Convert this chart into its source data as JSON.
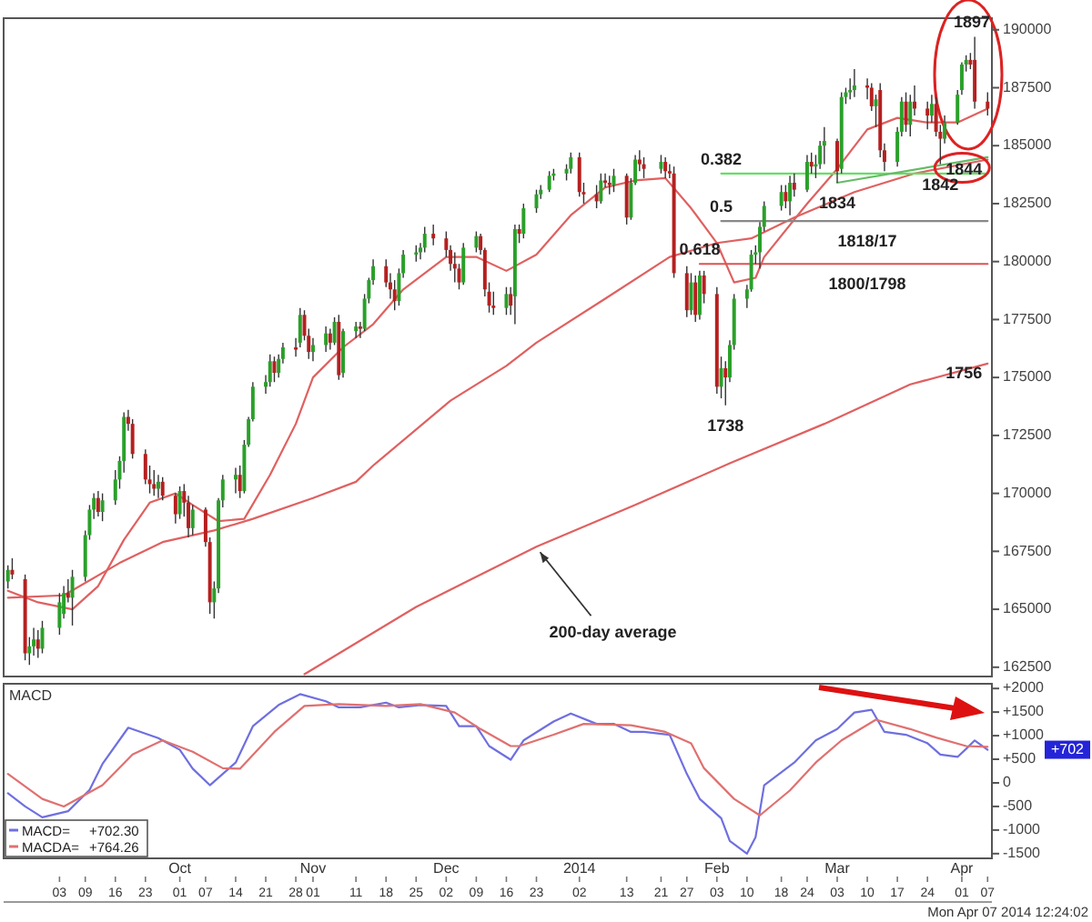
{
  "chart_data": [
    {
      "type": "candlestick",
      "tick_labels": "y",
      "xlim": [
        "2013-08-21",
        "2014-04-08"
      ],
      "x": [
        "2013-08-22",
        "2013-08-23",
        "2013-08-26",
        "2013-08-27",
        "2013-08-28",
        "2013-08-29",
        "2013-08-30",
        "2013-09-03",
        "2013-09-04",
        "2013-09-05",
        "2013-09-06",
        "2013-09-09",
        "2013-09-10",
        "2013-09-11",
        "2013-09-12",
        "2013-09-13",
        "2013-09-16",
        "2013-09-17",
        "2013-09-18",
        "2013-09-19",
        "2013-09-20",
        "2013-09-23",
        "2013-09-24",
        "2013-09-25",
        "2013-09-26",
        "2013-09-27",
        "2013-09-30",
        "2013-10-01",
        "2013-10-02",
        "2013-10-03",
        "2013-10-04",
        "2013-10-07",
        "2013-10-08",
        "2013-10-09",
        "2013-10-10",
        "2013-10-11",
        "2013-10-14",
        "2013-10-15",
        "2013-10-16",
        "2013-10-17",
        "2013-10-18",
        "2013-10-21",
        "2013-10-22",
        "2013-10-23",
        "2013-10-24",
        "2013-10-25",
        "2013-10-28",
        "2013-10-29",
        "2013-10-30",
        "2013-10-31",
        "2013-11-01",
        "2013-11-04",
        "2013-11-05",
        "2013-11-06",
        "2013-11-07",
        "2013-11-08",
        "2013-11-11",
        "2013-11-12",
        "2013-11-13",
        "2013-11-14",
        "2013-11-15",
        "2013-11-18",
        "2013-11-19",
        "2013-11-20",
        "2013-11-21",
        "2013-11-22",
        "2013-11-25",
        "2013-11-26",
        "2013-11-27",
        "2013-11-29",
        "2013-12-02",
        "2013-12-03",
        "2013-12-04",
        "2013-12-05",
        "2013-12-06",
        "2013-12-09",
        "2013-12-10",
        "2013-12-11",
        "2013-12-12",
        "2013-12-13",
        "2013-12-16",
        "2013-12-17",
        "2013-12-18",
        "2013-12-19",
        "2013-12-20",
        "2013-12-23",
        "2013-12-24",
        "2013-12-26",
        "2013-12-27",
        "2013-12-30",
        "2013-12-31",
        "2014-01-02",
        "2014-01-03",
        "2014-01-06",
        "2014-01-07",
        "2014-01-08",
        "2014-01-09",
        "2014-01-10",
        "2014-01-13",
        "2014-01-14",
        "2014-01-15",
        "2014-01-16",
        "2014-01-17",
        "2014-01-21",
        "2014-01-22",
        "2014-01-23",
        "2014-01-24",
        "2014-01-27",
        "2014-01-28",
        "2014-01-29",
        "2014-01-30",
        "2014-01-31",
        "2014-02-03",
        "2014-02-04",
        "2014-02-05",
        "2014-02-06",
        "2014-02-07",
        "2014-02-10",
        "2014-02-11",
        "2014-02-12",
        "2014-02-13",
        "2014-02-14",
        "2014-02-18",
        "2014-02-19",
        "2014-02-20",
        "2014-02-21",
        "2014-02-24",
        "2014-02-25",
        "2014-02-26",
        "2014-02-27",
        "2014-02-28",
        "2014-03-03",
        "2014-03-04",
        "2014-03-05",
        "2014-03-06",
        "2014-03-07",
        "2014-03-10",
        "2014-03-11",
        "2014-03-12",
        "2014-03-13",
        "2014-03-14",
        "2014-03-17",
        "2014-03-18",
        "2014-03-19",
        "2014-03-20",
        "2014-03-21",
        "2014-03-24",
        "2014-03-25",
        "2014-03-26",
        "2014-03-27",
        "2014-03-28",
        "2014-03-31",
        "2014-04-01",
        "2014-04-02",
        "2014-04-03",
        "2014-04-04",
        "2014-04-07"
      ],
      "ohlc": [
        [
          166200,
          166900,
          165900,
          166700
        ],
        [
          166700,
          167200,
          166300,
          166500
        ],
        [
          166300,
          166500,
          162800,
          163100
        ],
        [
          163100,
          163800,
          162600,
          163400
        ],
        [
          163400,
          164200,
          163000,
          163700
        ],
        [
          163700,
          164100,
          162900,
          163300
        ],
        [
          163300,
          164500,
          163100,
          164200
        ],
        [
          164200,
          165700,
          163900,
          165300
        ],
        [
          164800,
          166000,
          164600,
          165700
        ],
        [
          165700,
          166300,
          165300,
          165500
        ],
        [
          165500,
          166700,
          164300,
          166400
        ],
        [
          166400,
          168400,
          166200,
          168200
        ],
        [
          168200,
          169500,
          168000,
          169300
        ],
        [
          169300,
          170000,
          168900,
          169800
        ],
        [
          169800,
          170100,
          169000,
          169200
        ],
        [
          169200,
          170000,
          168800,
          169700
        ],
        [
          169700,
          171000,
          169500,
          170600
        ],
        [
          170600,
          171600,
          170200,
          171400
        ],
        [
          171400,
          173500,
          170900,
          173300
        ],
        [
          173300,
          173600,
          172700,
          173000
        ],
        [
          173000,
          173200,
          171500,
          171700
        ],
        [
          171700,
          171900,
          170400,
          170600
        ],
        [
          170600,
          171200,
          170000,
          170400
        ],
        [
          170400,
          171000,
          169900,
          170200
        ],
        [
          170200,
          170800,
          169800,
          170500
        ],
        [
          170500,
          170700,
          169700,
          169900
        ],
        [
          169900,
          170000,
          168700,
          169100
        ],
        [
          169100,
          170300,
          168900,
          170100
        ],
        [
          170100,
          170400,
          169000,
          169600
        ],
        [
          169600,
          169900,
          168100,
          168500
        ],
        [
          168500,
          169500,
          168200,
          169300
        ],
        [
          169300,
          169400,
          167700,
          167900
        ],
        [
          167900,
          168100,
          164800,
          165300
        ],
        [
          165300,
          166200,
          164600,
          165900
        ],
        [
          165900,
          169800,
          165700,
          169700
        ],
        [
          169700,
          170800,
          169400,
          170600
        ],
        [
          170600,
          171100,
          170000,
          170800
        ],
        [
          170800,
          171200,
          169800,
          170100
        ],
        [
          170100,
          172300,
          170000,
          172100
        ],
        [
          172100,
          173300,
          172000,
          173200
        ],
        [
          173200,
          174800,
          173100,
          174600
        ],
        [
          174600,
          175100,
          174300,
          174800
        ],
        [
          174800,
          176000,
          174600,
          175700
        ],
        [
          175700,
          175900,
          174800,
          175200
        ],
        [
          175200,
          176000,
          175000,
          175800
        ],
        [
          175800,
          176500,
          175600,
          176300
        ],
        [
          176300,
          176700,
          175900,
          176200
        ],
        [
          176500,
          178000,
          176300,
          177700
        ],
        [
          177700,
          177900,
          176600,
          176800
        ],
        [
          176800,
          177100,
          175800,
          176100
        ],
        [
          176100,
          176700,
          175700,
          176400
        ],
        [
          176400,
          177200,
          176100,
          176900
        ],
        [
          176900,
          177100,
          176200,
          176500
        ],
        [
          176500,
          177600,
          176400,
          177400
        ],
        [
          177400,
          177700,
          174900,
          175100
        ],
        [
          175200,
          177100,
          175000,
          177000
        ],
        [
          177000,
          177400,
          176700,
          177200
        ],
        [
          177200,
          177400,
          176700,
          177100
        ],
        [
          177100,
          178600,
          177000,
          178400
        ],
        [
          178400,
          179300,
          178200,
          179200
        ],
        [
          179200,
          180100,
          179000,
          179800
        ],
        [
          179800,
          180100,
          178900,
          179100
        ],
        [
          179100,
          179500,
          178400,
          178800
        ],
        [
          178800,
          179200,
          177900,
          178300
        ],
        [
          178300,
          179700,
          178100,
          179500
        ],
        [
          179500,
          180500,
          179300,
          180300
        ],
        [
          180300,
          180700,
          180000,
          180400
        ],
        [
          180400,
          180800,
          180100,
          180600
        ],
        [
          180600,
          181500,
          180400,
          181200
        ],
        [
          181200,
          181600,
          180700,
          181000
        ],
        [
          181000,
          181300,
          180200,
          180500
        ],
        [
          180500,
          180700,
          179600,
          179900
        ],
        [
          179900,
          180400,
          179100,
          179700
        ],
        [
          179700,
          179900,
          178800,
          179100
        ],
        [
          179100,
          180800,
          179000,
          180600
        ],
        [
          180600,
          181300,
          180400,
          181100
        ],
        [
          181100,
          181200,
          180300,
          180500
        ],
        [
          180500,
          180600,
          178500,
          178800
        ],
        [
          178700,
          179100,
          177800,
          178100
        ],
        [
          178100,
          178700,
          177700,
          178000
        ],
        [
          178000,
          178900,
          177700,
          178600
        ],
        [
          178600,
          178900,
          177700,
          178100
        ],
        [
          178500,
          181600,
          177300,
          181400
        ],
        [
          181400,
          181600,
          180800,
          181200
        ],
        [
          181200,
          182500,
          181000,
          182300
        ],
        [
          182300,
          183100,
          182100,
          182900
        ],
        [
          182900,
          183300,
          182700,
          183100
        ],
        [
          183100,
          183900,
          183000,
          183700
        ],
        [
          183700,
          184000,
          183500,
          183800
        ],
        [
          183800,
          184200,
          183500,
          184000
        ],
        [
          184000,
          184700,
          183800,
          184500
        ],
        [
          184500,
          184700,
          182800,
          183000
        ],
        [
          183000,
          183400,
          182500,
          182900
        ],
        [
          182900,
          183300,
          182300,
          182600
        ],
        [
          182600,
          183800,
          182500,
          183500
        ],
        [
          183500,
          183800,
          183200,
          183400
        ],
        [
          183400,
          183700,
          182900,
          183300
        ],
        [
          183300,
          184000,
          183000,
          183700
        ],
        [
          183700,
          183800,
          181600,
          181900
        ],
        [
          181900,
          183600,
          181800,
          183400
        ],
        [
          183400,
          184600,
          183300,
          184400
        ],
        [
          184400,
          184800,
          183900,
          184200
        ],
        [
          184200,
          184500,
          183600,
          184000
        ],
        [
          184000,
          184600,
          183800,
          184300
        ],
        [
          184300,
          184500,
          183600,
          183900
        ],
        [
          183900,
          184200,
          183600,
          183800
        ],
        [
          183800,
          184100,
          179300,
          179500
        ],
        [
          179500,
          179800,
          177600,
          177900
        ],
        [
          177900,
          179500,
          177700,
          179100
        ],
        [
          179100,
          179400,
          177400,
          177700
        ],
        [
          177700,
          179600,
          177500,
          179400
        ],
        [
          179400,
          179600,
          178200,
          178600
        ],
        [
          178600,
          178900,
          174300,
          174600
        ],
        [
          174600,
          175900,
          174100,
          175400
        ],
        [
          175400,
          175700,
          173800,
          175000
        ],
        [
          175000,
          176600,
          174800,
          176400
        ],
        [
          176400,
          178600,
          176200,
          178400
        ],
        [
          178400,
          179000,
          178000,
          178800
        ],
        [
          178800,
          180500,
          178700,
          180300
        ],
        [
          180300,
          180700,
          179900,
          180400
        ],
        [
          180400,
          181700,
          179700,
          181500
        ],
        [
          181500,
          182600,
          181300,
          182400
        ],
        [
          182400,
          183300,
          182200,
          183000
        ],
        [
          183000,
          183300,
          182300,
          182600
        ],
        [
          182600,
          183700,
          182000,
          183400
        ],
        [
          183400,
          183800,
          182800,
          183100
        ],
        [
          183100,
          184600,
          183000,
          184300
        ],
        [
          184300,
          184700,
          183800,
          184100
        ],
        [
          184100,
          184600,
          183600,
          184200
        ],
        [
          184200,
          185200,
          184000,
          185000
        ],
        [
          185000,
          185800,
          184200,
          185200
        ],
        [
          185200,
          185300,
          183400,
          183900
        ],
        [
          184000,
          187300,
          183800,
          187100
        ],
        [
          187100,
          187500,
          186800,
          187300
        ],
        [
          187300,
          187900,
          187000,
          187400
        ],
        [
          187400,
          188300,
          187100,
          187600
        ],
        [
          187600,
          187900,
          187000,
          187500
        ],
        [
          187500,
          187700,
          186500,
          186700
        ],
        [
          186700,
          187200,
          185800,
          187000
        ],
        [
          187400,
          187700,
          184500,
          184800
        ],
        [
          184800,
          185100,
          183900,
          184300
        ],
        [
          184300,
          185800,
          184100,
          185600
        ],
        [
          185600,
          187100,
          185400,
          186900
        ],
        [
          186900,
          187300,
          185600,
          185900
        ],
        [
          185900,
          187200,
          185400,
          186900
        ],
        [
          186900,
          187600,
          186300,
          186600
        ],
        [
          186600,
          186900,
          185700,
          186300
        ],
        [
          186300,
          187200,
          186000,
          186800
        ],
        [
          186800,
          187100,
          185400,
          185600
        ],
        [
          185600,
          185900,
          184200,
          185300
        ],
        [
          185300,
          186300,
          185100,
          186000
        ],
        [
          186000,
          187400,
          185900,
          187200
        ],
        [
          187400,
          188600,
          187200,
          188500
        ],
        [
          188500,
          188900,
          188200,
          188700
        ],
        [
          188700,
          189000,
          188300,
          188500
        ],
        [
          188700,
          189700,
          186600,
          186900
        ],
        [
          186900,
          187300,
          186300,
          186600
        ]
      ],
      "series": [
        {
          "type": "line",
          "color": "#e06060",
          "x": [
            "2013-08-22",
            "2013-08-29",
            "2013-09-06",
            "2013-09-12",
            "2013-09-18",
            "2013-09-24",
            "2013-09-30",
            "2013-10-04",
            "2013-10-10",
            "2013-10-16",
            "2013-10-22",
            "2013-10-28",
            "2013-11-01",
            "2013-11-08",
            "2013-11-15",
            "2013-11-22",
            "2013-12-02",
            "2013-12-09",
            "2013-12-16",
            "2013-12-23",
            "2013-12-31",
            "2014-01-08",
            "2014-01-15",
            "2014-01-22",
            "2014-01-28",
            "2014-02-03",
            "2014-02-07",
            "2014-02-12",
            "2014-02-14",
            "2014-02-24",
            "2014-03-03",
            "2014-03-10",
            "2014-03-17",
            "2014-03-24",
            "2014-03-31",
            "2014-04-07"
          ],
          "values": [
            165800,
            165300,
            165000,
            166000,
            168000,
            169600,
            170000,
            169500,
            168800,
            168900,
            170800,
            173000,
            175000,
            176300,
            177300,
            178800,
            180200,
            180200,
            179600,
            180300,
            182000,
            183200,
            183500,
            183600,
            182300,
            180800,
            179100,
            179300,
            180200,
            182500,
            184000,
            185700,
            186200,
            186000,
            186000,
            186600
          ]
        },
        {
          "type": "line",
          "color": "#e06060",
          "x": [
            "2013-08-22",
            "2013-09-04",
            "2013-09-17",
            "2013-09-27",
            "2013-10-09",
            "2013-10-18",
            "2013-11-01",
            "2013-11-11",
            "2013-11-15",
            "2013-12-03",
            "2013-12-16",
            "2013-12-23",
            "2014-01-08",
            "2014-01-23",
            "2014-02-03",
            "2014-02-11",
            "2014-02-21",
            "2014-03-07",
            "2014-03-21",
            "2014-04-07"
          ],
          "values": [
            165500,
            165600,
            167000,
            167900,
            168400,
            168900,
            169800,
            170500,
            171200,
            174000,
            175500,
            176500,
            178400,
            180200,
            180800,
            181000,
            181900,
            183000,
            183800,
            184400
          ]
        },
        {
          "type": "line",
          "color": "#e06060",
          "x": [
            "2013-10-30",
            "2013-11-25",
            "2013-12-23",
            "2014-01-15",
            "2014-02-06",
            "2014-02-28",
            "2014-03-20",
            "2014-04-07"
          ],
          "values": [
            162200,
            165100,
            167700,
            169500,
            171300,
            173000,
            174700,
            175600
          ]
        },
        {
          "type": "line",
          "color": "#66dd66",
          "x": [
            "2014-02-04",
            "2014-04-07"
          ],
          "values": [
            183800,
            183800
          ]
        },
        {
          "type": "line",
          "color": "#888888",
          "x": [
            "2014-02-04",
            "2014-04-07"
          ],
          "values": [
            181750,
            181750
          ]
        },
        {
          "type": "line",
          "color": "#e05050",
          "x": [
            "2014-01-30",
            "2014-04-07"
          ],
          "values": [
            179900,
            179900
          ]
        },
        {
          "type": "line",
          "color": "#66bb66",
          "x": [
            "2014-03-03",
            "2014-04-07"
          ],
          "values": [
            183400,
            184500
          ]
        }
      ],
      "ylim": [
        162100,
        190500
      ],
      "yticks": [
        162500,
        165000,
        167500,
        170000,
        172500,
        175000,
        177500,
        180000,
        182500,
        185000,
        187500,
        190000
      ],
      "annotations": [
        {
          "text": "1897",
          "x": "2014-04-04",
          "y": 189700
        },
        {
          "text": "1844",
          "x": "2014-04-07",
          "y": 184400
        },
        {
          "text": "1738",
          "x": "2014-02-05",
          "y": 173800
        },
        {
          "text": "1834",
          "x": "2014-03-03",
          "y": 183400
        },
        {
          "text": "1842",
          "x": "2014-03-27",
          "y": 184200
        },
        {
          "text": "1756",
          "x": "2014-04-07",
          "y": 175600
        },
        {
          "text": "1818/17",
          "x": "2014-03-10",
          "y": 181750
        },
        {
          "text": "1800/1798",
          "x": "2014-03-10",
          "y": 179900
        },
        {
          "text": "0.382",
          "x": "2014-02-04",
          "y": 183800
        },
        {
          "text": "0.5",
          "x": "2014-02-04",
          "y": 181750
        },
        {
          "text": "0.618",
          "x": "2014-01-30",
          "y": 179900
        },
        {
          "text": "200-day average",
          "x": "2013-12-23",
          "y": 167700
        }
      ]
    },
    {
      "type": "line",
      "title": "MACD",
      "legend": "bottom left",
      "xlim": [
        "2013-08-21",
        "2014-04-08"
      ],
      "series": [
        {
          "name": "MACD=",
          "color": "#6f6fe0",
          "x": [
            "2013-08-22",
            "2013-08-26",
            "2013-08-30",
            "2013-09-05",
            "2013-09-10",
            "2013-09-13",
            "2013-09-19",
            "2013-09-26",
            "2013-10-01",
            "2013-10-04",
            "2013-10-08",
            "2013-10-14",
            "2013-10-18",
            "2013-10-24",
            "2013-10-29",
            "2013-11-04",
            "2013-11-07",
            "2013-11-12",
            "2013-11-18",
            "2013-11-21",
            "2013-11-26",
            "2013-12-02",
            "2013-12-05",
            "2013-12-09",
            "2013-12-12",
            "2013-12-17",
            "2013-12-20",
            "2013-12-27",
            "2013-12-31",
            "2014-01-06",
            "2014-01-10",
            "2014-01-14",
            "2014-01-17",
            "2014-01-23",
            "2014-01-27",
            "2014-01-30",
            "2014-02-04",
            "2014-02-06",
            "2014-02-10",
            "2014-02-12",
            "2014-02-14",
            "2014-02-21",
            "2014-02-26",
            "2014-03-03",
            "2014-03-07",
            "2014-03-11",
            "2014-03-14",
            "2014-03-19",
            "2014-03-24",
            "2014-03-27",
            "2014-03-31",
            "2014-04-02",
            "2014-04-04",
            "2014-04-07"
          ],
          "values": [
            -220,
            -500,
            -730,
            -600,
            -150,
            400,
            1170,
            950,
            700,
            300,
            -50,
            430,
            1200,
            1650,
            1880,
            1730,
            1600,
            1600,
            1700,
            1600,
            1650,
            1630,
            1200,
            1200,
            780,
            490,
            900,
            1300,
            1470,
            1250,
            1250,
            1080,
            1080,
            1020,
            190,
            -340,
            -750,
            -1230,
            -1500,
            -1150,
            -50,
            430,
            900,
            1140,
            1490,
            1550,
            1080,
            1020,
            840,
            600,
            550,
            720,
            900,
            702
          ]
        },
        {
          "name": "MACDA=",
          "color": "#e07070",
          "x": [
            "2013-08-22",
            "2013-08-30",
            "2013-09-04",
            "2013-09-13",
            "2013-09-20",
            "2013-09-27",
            "2013-10-04",
            "2013-10-11",
            "2013-10-15",
            "2013-10-23",
            "2013-10-30",
            "2013-11-07",
            "2013-11-18",
            "2013-11-26",
            "2013-12-04",
            "2013-12-10",
            "2013-12-17",
            "2013-12-19",
            "2013-12-27",
            "2014-01-03",
            "2014-01-14",
            "2014-01-22",
            "2014-01-28",
            "2014-01-31",
            "2014-02-07",
            "2014-02-13",
            "2014-02-20",
            "2014-02-26",
            "2014-03-04",
            "2014-03-12",
            "2014-03-20",
            "2014-03-26",
            "2014-04-02",
            "2014-04-07"
          ],
          "values": [
            190,
            -340,
            -500,
            -50,
            600,
            900,
            660,
            310,
            300,
            1080,
            1630,
            1670,
            1630,
            1670,
            1490,
            1140,
            780,
            780,
            1020,
            1250,
            1220,
            1080,
            840,
            310,
            -340,
            -690,
            -160,
            430,
            900,
            1340,
            1140,
            960,
            780,
            764
          ]
        }
      ],
      "ylim": [
        -1600,
        2100
      ],
      "yticks": [
        {
          "value": 2000,
          "label": "+2000"
        },
        {
          "value": 1500,
          "label": "+1500"
        },
        {
          "value": 1000,
          "label": "+1000"
        },
        {
          "value": 500,
          "label": "+500"
        },
        0,
        -500,
        -1000,
        -1500
      ],
      "xticks": [
        {
          "value": "2013-09-03",
          "label": "03"
        },
        {
          "value": "2013-09-09",
          "label": "09"
        },
        {
          "value": "2013-09-16",
          "label": "16"
        },
        {
          "value": "2013-09-23",
          "label": "23"
        },
        {
          "value": "2013-10-01",
          "label": "01"
        },
        {
          "value": "2013-10-07",
          "label": "07"
        },
        {
          "value": "2013-10-14",
          "label": "14"
        },
        {
          "value": "2013-10-21",
          "label": "21"
        },
        {
          "value": "2013-10-28",
          "label": "28"
        },
        {
          "value": "2013-11-01",
          "label": "01"
        },
        {
          "value": "2013-11-11",
          "label": "11"
        },
        {
          "value": "2013-11-18",
          "label": "18"
        },
        {
          "value": "2013-11-25",
          "label": "25"
        },
        {
          "value": "2013-12-02",
          "label": "02"
        },
        {
          "value": "2013-12-09",
          "label": "09"
        },
        {
          "value": "2013-12-16",
          "label": "16"
        },
        {
          "value": "2013-12-23",
          "label": "23"
        },
        {
          "value": "2014-01-02",
          "label": "02"
        },
        {
          "value": "2014-01-13",
          "label": "13"
        },
        {
          "value": "2014-01-21",
          "label": "21"
        },
        {
          "value": "2014-01-27",
          "label": "27"
        },
        {
          "value": "2014-02-03",
          "label": "03"
        },
        {
          "value": "2014-02-10",
          "label": "10"
        },
        {
          "value": "2014-02-18",
          "label": "18"
        },
        {
          "value": "2014-02-24",
          "label": "24"
        },
        {
          "value": "2014-03-03",
          "label": "03"
        },
        {
          "value": "2014-03-10",
          "label": "10"
        },
        {
          "value": "2014-03-17",
          "label": "17"
        },
        {
          "value": "2014-03-24",
          "label": "24"
        },
        {
          "value": "2014-04-01",
          "label": "01"
        },
        {
          "value": "2014-04-07",
          "label": "07"
        }
      ],
      "annotations": [
        "+702.30",
        "+764.26",
        "+702",
        "Mon Apr 07 2014 12:24:02",
        "Oct",
        "Nov",
        "Dec",
        "2014",
        "Feb",
        "Mar",
        "Apr"
      ]
    }
  ]
}
